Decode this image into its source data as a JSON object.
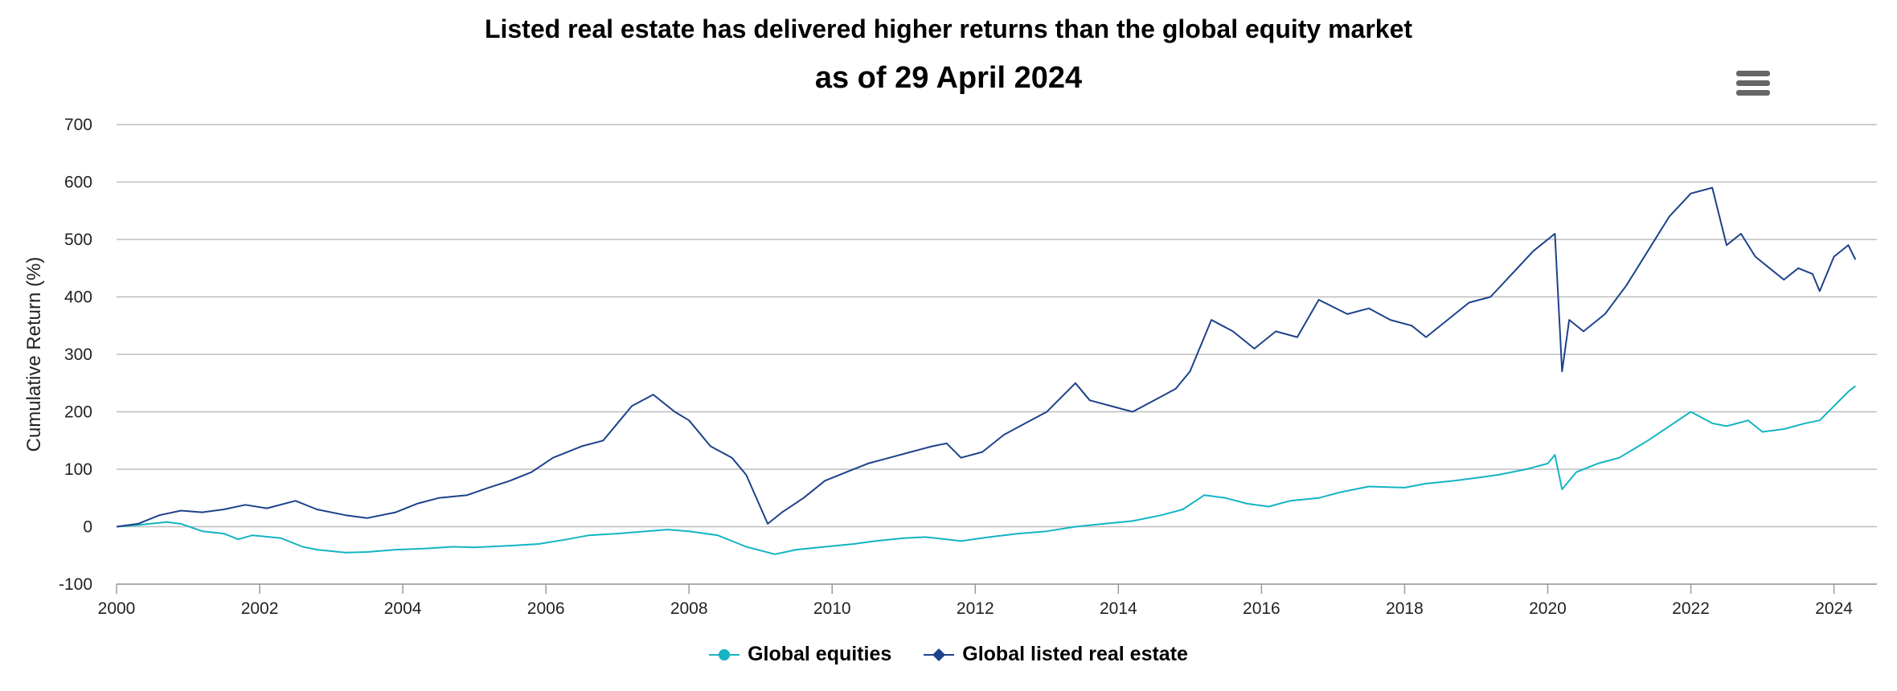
{
  "chart_data": {
    "type": "line",
    "title": "Listed real estate has delivered higher returns than the global equity market",
    "subtitle": "as of 29 April 2024",
    "ylabel": "Cumulative Return (%)",
    "xlim": [
      2000.0,
      2024.6
    ],
    "ylim": [
      -100,
      700
    ],
    "yticks": [
      "700",
      "600",
      "500",
      "400",
      "300",
      "200",
      "100",
      "0",
      "-100"
    ],
    "yticks_values": [
      700,
      600,
      500,
      400,
      300,
      200,
      100,
      0,
      -100
    ],
    "xticks": [
      "2000",
      "2002",
      "2004",
      "2006",
      "2008",
      "2010",
      "2012",
      "2014",
      "2016",
      "2018",
      "2020",
      "2022",
      "2024"
    ],
    "xticks_values": [
      2000,
      2002,
      2004,
      2006,
      2008,
      2010,
      2012,
      2014,
      2016,
      2018,
      2020,
      2022,
      2024
    ],
    "grid": true,
    "legend_position": "bottom",
    "series": [
      {
        "name": "Global equities",
        "color": "#14b4c3",
        "marker": "circle",
        "x": [
          2000.0,
          2000.3,
          2000.7,
          2000.9,
          2001.2,
          2001.5,
          2001.7,
          2001.9,
          2002.3,
          2002.6,
          2002.8,
          2003.2,
          2003.5,
          2003.9,
          2004.3,
          2004.7,
          2005.0,
          2005.5,
          2005.9,
          2006.3,
          2006.6,
          2007.0,
          2007.4,
          2007.7,
          2008.0,
          2008.4,
          2008.8,
          2009.2,
          2009.5,
          2009.9,
          2010.3,
          2010.6,
          2011.0,
          2011.3,
          2011.6,
          2011.8,
          2012.2,
          2012.6,
          2013.0,
          2013.4,
          2013.8,
          2014.2,
          2014.6,
          2014.9,
          2015.2,
          2015.5,
          2015.8,
          2016.1,
          2016.4,
          2016.8,
          2017.1,
          2017.5,
          2018.0,
          2018.3,
          2018.7,
          2019.0,
          2019.3,
          2019.7,
          2020.0,
          2020.1,
          2020.2,
          2020.4,
          2020.7,
          2021.0,
          2021.4,
          2021.7,
          2022.0,
          2022.3,
          2022.5,
          2022.8,
          2023.0,
          2023.3,
          2023.6,
          2023.8,
          2024.0,
          2024.2,
          2024.3
        ],
        "y": [
          0,
          3,
          8,
          5,
          -8,
          -12,
          -22,
          -15,
          -20,
          -35,
          -40,
          -45,
          -44,
          -40,
          -38,
          -35,
          -36,
          -33,
          -30,
          -22,
          -15,
          -12,
          -8,
          -5,
          -8,
          -15,
          -35,
          -48,
          -40,
          -35,
          -30,
          -25,
          -20,
          -18,
          -22,
          -25,
          -18,
          -12,
          -8,
          0,
          5,
          10,
          20,
          30,
          55,
          50,
          40,
          35,
          45,
          50,
          60,
          70,
          68,
          75,
          80,
          85,
          90,
          100,
          110,
          125,
          65,
          95,
          110,
          120,
          150,
          175,
          200,
          180,
          175,
          185,
          165,
          170,
          180,
          185,
          210,
          235,
          245
        ]
      },
      {
        "name": "Global listed real estate",
        "color": "#1d428a",
        "marker": "diamond",
        "x": [
          2000.0,
          2000.3,
          2000.6,
          2000.9,
          2001.2,
          2001.5,
          2001.8,
          2002.1,
          2002.5,
          2002.8,
          2003.2,
          2003.5,
          2003.9,
          2004.2,
          2004.5,
          2004.9,
          2005.2,
          2005.5,
          2005.8,
          2006.1,
          2006.5,
          2006.8,
          2007.0,
          2007.2,
          2007.5,
          2007.8,
          2008.0,
          2008.3,
          2008.6,
          2008.8,
          2009.1,
          2009.3,
          2009.6,
          2009.9,
          2010.2,
          2010.5,
          2010.8,
          2011.1,
          2011.4,
          2011.6,
          2011.8,
          2012.1,
          2012.4,
          2012.7,
          2013.0,
          2013.4,
          2013.6,
          2013.9,
          2014.2,
          2014.5,
          2014.8,
          2015.0,
          2015.3,
          2015.6,
          2015.9,
          2016.2,
          2016.5,
          2016.8,
          2017.2,
          2017.5,
          2017.8,
          2018.1,
          2018.3,
          2018.6,
          2018.9,
          2019.2,
          2019.5,
          2019.8,
          2020.1,
          2020.2,
          2020.3,
          2020.5,
          2020.8,
          2021.1,
          2021.4,
          2021.7,
          2022.0,
          2022.3,
          2022.5,
          2022.7,
          2022.9,
          2023.1,
          2023.3,
          2023.5,
          2023.7,
          2023.8,
          2024.0,
          2024.2,
          2024.3
        ],
        "y": [
          0,
          5,
          20,
          28,
          25,
          30,
          38,
          32,
          45,
          30,
          20,
          15,
          25,
          40,
          50,
          55,
          68,
          80,
          95,
          120,
          140,
          150,
          180,
          210,
          230,
          200,
          185,
          140,
          120,
          90,
          5,
          25,
          50,
          80,
          95,
          110,
          120,
          130,
          140,
          145,
          120,
          130,
          160,
          180,
          200,
          250,
          220,
          210,
          200,
          220,
          240,
          270,
          360,
          340,
          310,
          340,
          330,
          395,
          370,
          380,
          360,
          350,
          330,
          360,
          390,
          400,
          440,
          480,
          510,
          270,
          360,
          340,
          370,
          420,
          480,
          540,
          580,
          590,
          490,
          510,
          470,
          450,
          430,
          450,
          440,
          410,
          470,
          490,
          465
        ]
      }
    ]
  }
}
